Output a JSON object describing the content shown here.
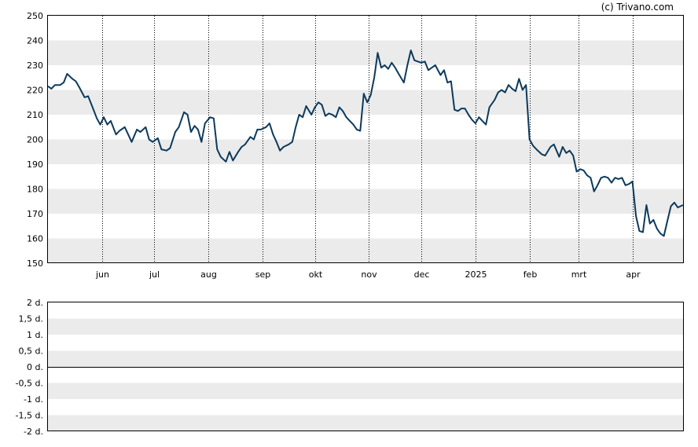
{
  "credit": "(c) Trivano.com",
  "colors": {
    "line": "#0d3a5c",
    "band": "#ebebeb",
    "frame": "#000000",
    "grid": "#000000"
  },
  "chart_data": [
    {
      "type": "line",
      "title": "",
      "xlabel": "",
      "ylabel": "",
      "ylim": [
        150,
        250
      ],
      "yticks": [
        "250",
        "240",
        "230",
        "220",
        "210",
        "200",
        "190",
        "180",
        "170",
        "160",
        "150"
      ],
      "xticks": [
        "jun",
        "jul",
        "aug",
        "sep",
        "okt",
        "nov",
        "dec",
        "2025",
        "feb",
        "mrt",
        "apr"
      ],
      "x_start": "2024-05-01",
      "x_end": "2025-04-30",
      "xtick_dates": [
        "2024-06-01",
        "2024-07-01",
        "2024-08-01",
        "2024-09-01",
        "2024-10-01",
        "2024-11-01",
        "2024-12-01",
        "2025-01-01",
        "2025-02-01",
        "2025-03-01",
        "2025-04-01"
      ],
      "grid": "vertical dotted at month starts, alternating horizontal bands",
      "series": [
        {
          "points": [
            [
              "2024-05-01",
              221.5
            ],
            [
              "2024-05-03",
              220.5
            ],
            [
              "2024-05-05",
              222
            ],
            [
              "2024-05-08",
              222
            ],
            [
              "2024-05-10",
              223
            ],
            [
              "2024-05-12",
              226.5
            ],
            [
              "2024-05-15",
              224.5
            ],
            [
              "2024-05-17",
              223.5
            ],
            [
              "2024-05-19",
              221
            ],
            [
              "2024-05-22",
              217
            ],
            [
              "2024-05-24",
              217.5
            ],
            [
              "2024-05-26",
              214
            ],
            [
              "2024-05-29",
              208.5
            ],
            [
              "2024-05-31",
              206
            ],
            [
              "2024-06-02",
              209
            ],
            [
              "2024-06-04",
              206
            ],
            [
              "2024-06-06",
              207.5
            ],
            [
              "2024-06-09",
              202
            ],
            [
              "2024-06-11",
              203.5
            ],
            [
              "2024-06-14",
              205
            ],
            [
              "2024-06-16",
              202
            ],
            [
              "2024-06-18",
              199
            ],
            [
              "2024-06-21",
              204
            ],
            [
              "2024-06-23",
              203
            ],
            [
              "2024-06-26",
              205
            ],
            [
              "2024-06-28",
              200
            ],
            [
              "2024-06-30",
              199
            ],
            [
              "2024-07-03",
              200.5
            ],
            [
              "2024-07-05",
              196
            ],
            [
              "2024-07-08",
              195.5
            ],
            [
              "2024-07-10",
              196.5
            ],
            [
              "2024-07-13",
              203
            ],
            [
              "2024-07-15",
              205
            ],
            [
              "2024-07-18",
              211
            ],
            [
              "2024-07-20",
              210
            ],
            [
              "2024-07-22",
              203
            ],
            [
              "2024-07-24",
              205.5
            ],
            [
              "2024-07-26",
              204
            ],
            [
              "2024-07-28",
              199
            ],
            [
              "2024-07-30",
              206.5
            ],
            [
              "2024-08-02",
              209
            ],
            [
              "2024-08-04",
              208.5
            ],
            [
              "2024-08-06",
              196
            ],
            [
              "2024-08-08",
              193
            ],
            [
              "2024-08-11",
              191
            ],
            [
              "2024-08-13",
              195
            ],
            [
              "2024-08-15",
              191.5
            ],
            [
              "2024-08-18",
              195
            ],
            [
              "2024-08-20",
              197
            ],
            [
              "2024-08-22",
              198
            ],
            [
              "2024-08-25",
              201
            ],
            [
              "2024-08-27",
              200
            ],
            [
              "2024-08-29",
              204
            ],
            [
              "2024-08-31",
              204
            ],
            [
              "2024-09-03",
              205
            ],
            [
              "2024-09-05",
              206.5
            ],
            [
              "2024-09-07",
              202
            ],
            [
              "2024-09-09",
              199
            ],
            [
              "2024-09-11",
              195.5
            ],
            [
              "2024-09-13",
              197
            ],
            [
              "2024-09-16",
              198
            ],
            [
              "2024-09-18",
              199
            ],
            [
              "2024-09-20",
              205
            ],
            [
              "2024-09-22",
              210
            ],
            [
              "2024-09-24",
              209
            ],
            [
              "2024-09-26",
              213.5
            ],
            [
              "2024-09-29",
              210
            ],
            [
              "2024-10-01",
              213
            ],
            [
              "2024-10-03",
              215
            ],
            [
              "2024-10-05",
              214
            ],
            [
              "2024-10-07",
              209.5
            ],
            [
              "2024-10-09",
              210.5
            ],
            [
              "2024-10-11",
              210
            ],
            [
              "2024-10-13",
              209
            ],
            [
              "2024-10-15",
              213
            ],
            [
              "2024-10-17",
              211.5
            ],
            [
              "2024-10-19",
              209
            ],
            [
              "2024-10-21",
              207.5
            ],
            [
              "2024-10-23",
              206
            ],
            [
              "2024-10-25",
              204
            ],
            [
              "2024-10-27",
              203.5
            ],
            [
              "2024-10-29",
              218.5
            ],
            [
              "2024-10-31",
              215
            ],
            [
              "2024-11-02",
              218
            ],
            [
              "2024-11-04",
              225
            ],
            [
              "2024-11-06",
              235
            ],
            [
              "2024-11-08",
              229
            ],
            [
              "2024-11-10",
              230
            ],
            [
              "2024-11-12",
              228.5
            ],
            [
              "2024-11-14",
              231
            ],
            [
              "2024-11-16",
              229
            ],
            [
              "2024-11-18",
              226.5
            ],
            [
              "2024-11-21",
              223
            ],
            [
              "2024-11-23",
              230
            ],
            [
              "2024-11-25",
              236
            ],
            [
              "2024-11-27",
              232
            ],
            [
              "2024-11-29",
              231.5
            ],
            [
              "2024-12-01",
              231
            ],
            [
              "2024-12-03",
              231.5
            ],
            [
              "2024-12-05",
              228
            ],
            [
              "2024-12-07",
              229
            ],
            [
              "2024-12-09",
              230
            ],
            [
              "2024-12-12",
              226
            ],
            [
              "2024-12-14",
              228
            ],
            [
              "2024-12-16",
              223
            ],
            [
              "2024-12-18",
              223.5
            ],
            [
              "2024-12-20",
              212
            ],
            [
              "2024-12-22",
              211.5
            ],
            [
              "2024-12-24",
              212.5
            ],
            [
              "2024-12-26",
              212.5
            ],
            [
              "2024-12-28",
              210
            ],
            [
              "2024-12-30",
              208
            ],
            [
              "2025-01-01",
              206.5
            ],
            [
              "2025-01-03",
              209
            ],
            [
              "2025-01-05",
              207.5
            ],
            [
              "2025-01-07",
              206
            ],
            [
              "2025-01-09",
              213
            ],
            [
              "2025-01-12",
              216
            ],
            [
              "2025-01-14",
              219
            ],
            [
              "2025-01-16",
              220
            ],
            [
              "2025-01-18",
              219
            ],
            [
              "2025-01-20",
              222
            ],
            [
              "2025-01-22",
              220.5
            ],
            [
              "2025-01-24",
              219.5
            ],
            [
              "2025-01-26",
              224.5
            ],
            [
              "2025-01-28",
              220
            ],
            [
              "2025-01-30",
              222
            ],
            [
              "2025-02-01",
              200
            ],
            [
              "2025-02-03",
              197.5
            ],
            [
              "2025-02-05",
              196
            ],
            [
              "2025-02-08",
              194
            ],
            [
              "2025-02-10",
              193.5
            ],
            [
              "2025-02-13",
              197
            ],
            [
              "2025-02-15",
              198
            ],
            [
              "2025-02-18",
              193
            ],
            [
              "2025-02-20",
              197
            ],
            [
              "2025-02-22",
              194.5
            ],
            [
              "2025-02-24",
              195.5
            ],
            [
              "2025-02-26",
              193.5
            ],
            [
              "2025-02-28",
              187
            ],
            [
              "2025-03-02",
              188
            ],
            [
              "2025-03-04",
              187.5
            ],
            [
              "2025-03-06",
              185.5
            ],
            [
              "2025-03-08",
              184.5
            ],
            [
              "2025-03-10",
              179
            ],
            [
              "2025-03-12",
              181.5
            ],
            [
              "2025-03-14",
              184.5
            ],
            [
              "2025-03-16",
              185
            ],
            [
              "2025-03-18",
              184.5
            ],
            [
              "2025-03-20",
              182.5
            ],
            [
              "2025-03-22",
              184.5
            ],
            [
              "2025-03-24",
              184
            ],
            [
              "2025-03-26",
              184.5
            ],
            [
              "2025-03-28",
              181.5
            ],
            [
              "2025-03-30",
              182
            ],
            [
              "2025-04-01",
              183
            ],
            [
              "2025-04-03",
              169
            ],
            [
              "2025-04-05",
              163
            ],
            [
              "2025-04-07",
              162.5
            ],
            [
              "2025-04-09",
              173.5
            ],
            [
              "2025-04-11",
              166
            ],
            [
              "2025-04-13",
              167.5
            ],
            [
              "2025-04-15",
              164
            ],
            [
              "2025-04-17",
              162
            ],
            [
              "2025-04-19",
              161
            ],
            [
              "2025-04-21",
              167
            ],
            [
              "2025-04-23",
              173
            ],
            [
              "2025-04-25",
              174.5
            ],
            [
              "2025-04-27",
              172.5
            ],
            [
              "2025-04-30",
              173.5
            ]
          ]
        }
      ]
    },
    {
      "type": "line",
      "title": "",
      "ylim": [
        -2,
        2
      ],
      "yticks": [
        "2 d.",
        "1,5 d.",
        "1 d.",
        "0,5 d.",
        "0 d.",
        "-0,5 d.",
        "-1 d.",
        "-1,5 d.",
        "-2 d."
      ],
      "zero_line": 0,
      "series": []
    }
  ]
}
